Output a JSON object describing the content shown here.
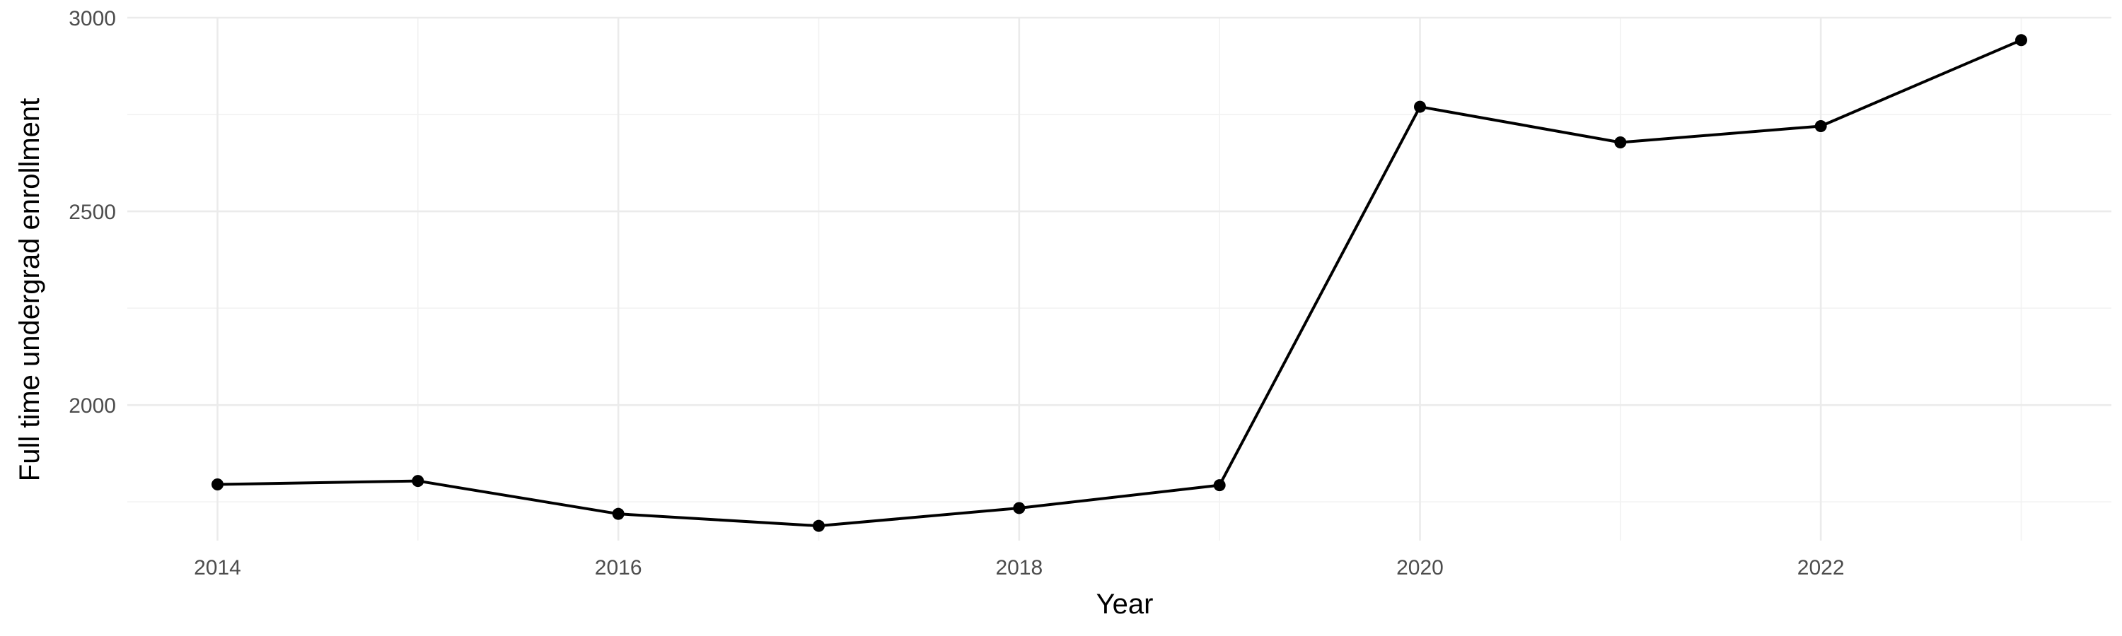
{
  "chart_data": {
    "type": "line",
    "title": "",
    "xlabel": "Year",
    "ylabel": "Full time undergrad enrollment",
    "xlim": [
      2013.55,
      2023.45
    ],
    "ylim": [
      1650,
      3000
    ],
    "x_ticks": [
      2014,
      2016,
      2018,
      2020,
      2022
    ],
    "x_tick_labels": [
      "2014",
      "2016",
      "2018",
      "2020",
      "2022"
    ],
    "y_ticks": [
      2000,
      2500,
      3000
    ],
    "y_tick_labels": [
      "2000",
      "2500",
      "3000"
    ],
    "grid": true,
    "legend": "none",
    "line_color": "#000000",
    "series": [
      {
        "x": [
          2014,
          2015,
          2016,
          2017,
          2018,
          2019,
          2020,
          2021,
          2022,
          2023
        ],
        "values": [
          1795,
          1804,
          1719,
          1688,
          1734,
          1793,
          2770,
          2678,
          2720,
          2942
        ]
      }
    ]
  }
}
